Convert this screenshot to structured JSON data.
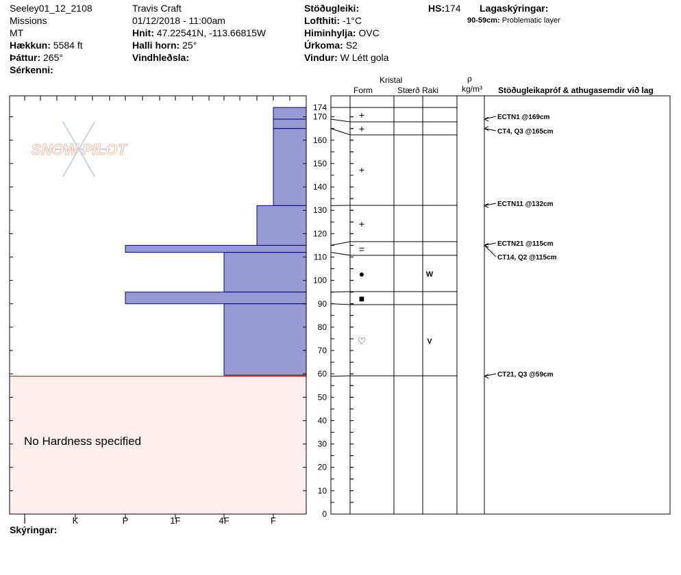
{
  "header": {
    "col1": {
      "site": "Seeley01_12_2108",
      "range": "Missions",
      "state": "MT",
      "elev_label": "Hækkun:",
      "elev_value": "5584 ft",
      "aspect_label": "Þáttur:",
      "aspect_value": "265°",
      "features_label": "Sérkenni:"
    },
    "col2": {
      "observer": "Travis  Craft",
      "datetime": "01/12/2018 - 11:00am",
      "coords_label": "Hnit:",
      "coords_value": "47.22541N, -113.66815W",
      "slope_label": "Halli horn:",
      "slope_value": "25°",
      "wind_loading_label": "Vindhleðsla:"
    },
    "col3": {
      "stability_label": "Stöðugleiki:",
      "air_temp_label": "Lofthiti:",
      "air_temp_value": "-1°C",
      "sky_label": "Himinhylja:",
      "sky_value": "OVC",
      "precip_label": "Úrkoma:",
      "precip_value": "S2",
      "wind_label": "Vindur:",
      "wind_value": "W Létt gola"
    },
    "hs_label": "HS:",
    "hs_value": "174",
    "legend_label": "Lagaskýringar:",
    "legend_range": "90-59cm:",
    "legend_text": "Problematic layer"
  },
  "footer_label": "Skýringar:",
  "no_hardness_text": "No Hardness specified",
  "logo_text": "SNOW PILOT",
  "table_headers": {
    "kristal": "Kristal",
    "form": "Form",
    "size": "Stærð",
    "raki": "Raki",
    "rho": "ρ",
    "density_unit": "kg/m³",
    "tests": "Stöðugleikapróf & athugasemdir við lag"
  },
  "colors": {
    "hardness_fill": "#9999d6",
    "hardness_stroke": "#00007f",
    "no_hardness_fill": "#fdeeee",
    "problem_line": "#cc2222",
    "logo": "#f2c4b4"
  },
  "chart_data": {
    "type": "bar",
    "title": "",
    "ylabel": "",
    "ylim": [
      0,
      180
    ],
    "y_ticks": [
      0,
      10,
      20,
      30,
      40,
      50,
      60,
      70,
      80,
      90,
      100,
      110,
      120,
      130,
      140,
      150,
      160,
      170,
      174
    ],
    "hardness_scale": [
      "I",
      "K",
      "P",
      "1F",
      "4F",
      "F"
    ],
    "hardness_scale_value": {
      "I": 1,
      "K": 2,
      "P": 3,
      "1F": 4,
      "4F": 5,
      "F": 6
    },
    "layers": [
      {
        "top": 174,
        "bottom": 169,
        "hardness": "F",
        "form": "+",
        "wetness": ""
      },
      {
        "top": 169,
        "bottom": 165,
        "hardness": "F",
        "form": "",
        "wetness": ""
      },
      {
        "top": 165,
        "bottom": 132,
        "hardness": "F",
        "form": "+",
        "wetness": ""
      },
      {
        "top": 132,
        "bottom": 115,
        "hardness": "F+",
        "form": "+",
        "wetness": ""
      },
      {
        "top": 115,
        "bottom": 112,
        "hardness": "P",
        "form": "=",
        "wetness": ""
      },
      {
        "top": 112,
        "bottom": 95,
        "hardness": "4F",
        "form": "●",
        "wetness": "W"
      },
      {
        "top": 95,
        "bottom": 90,
        "hardness": "P",
        "form": "■",
        "wetness": ""
      },
      {
        "top": 90,
        "bottom": 59,
        "hardness": "4F",
        "form": "♡",
        "wetness": "V"
      }
    ],
    "no_hardness_range": [
      0,
      59
    ],
    "stability_tests": [
      {
        "height": 169,
        "text": "ECTN1 @169cm"
      },
      {
        "height": 165,
        "text": "CT4, Q3 @165cm"
      },
      {
        "height": 132,
        "text": "ECTN11 @132cm"
      },
      {
        "height": 115,
        "text": "ECTN21 @115cm"
      },
      {
        "height": 115,
        "text": "CT14, Q2 @115cm"
      },
      {
        "height": 59,
        "text": "CT21, Q3 @59cm"
      }
    ]
  }
}
